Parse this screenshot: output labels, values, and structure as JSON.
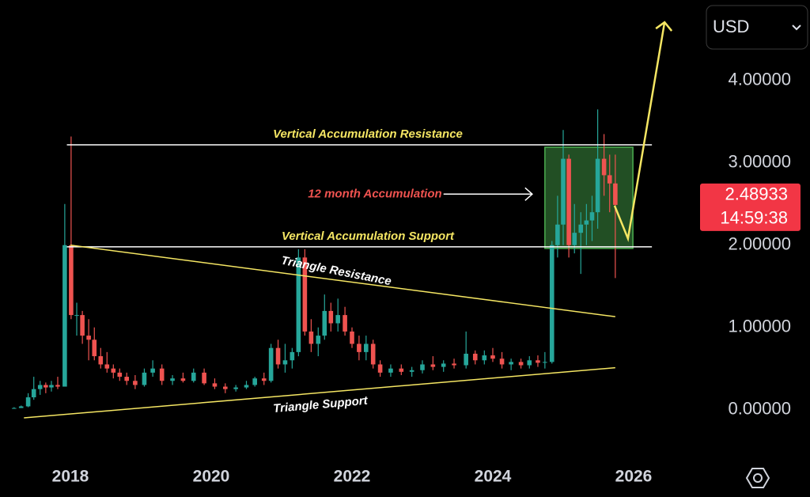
{
  "chart_data": {
    "type": "candlestick",
    "xlim": [
      2017,
      2027
    ],
    "ylim": [
      -0.6,
      4.98
    ],
    "xticks": [
      2018,
      2020,
      2022,
      2024,
      2026
    ],
    "yticks": [
      {
        "value": 0,
        "label": "0.00000"
      },
      {
        "value": 1,
        "label": "1.00000"
      },
      {
        "value": 2,
        "label": "2.00000"
      },
      {
        "value": 3,
        "label": "3.00000"
      },
      {
        "value": 4,
        "label": "4.00000"
      }
    ],
    "up_color": "#26a69a",
    "down_color": "#ef5350",
    "x": [
      2017.2,
      2017.3,
      2017.4,
      2017.48,
      2017.57,
      2017.65,
      2017.73,
      2017.82,
      2017.92,
      2018.01,
      2018.09,
      2018.17,
      2018.26,
      2018.34,
      2018.43,
      2018.52,
      2018.61,
      2018.7,
      2018.8,
      2018.92,
      2019.05,
      2019.17,
      2019.3,
      2019.45,
      2019.6,
      2019.75,
      2019.9,
      2020.05,
      2020.2,
      2020.35,
      2020.5,
      2020.62,
      2020.75,
      2020.85,
      2020.95,
      2021.05,
      2021.15,
      2021.24,
      2021.33,
      2021.42,
      2021.52,
      2021.61,
      2021.7,
      2021.8,
      2021.9,
      2022.0,
      2022.1,
      2022.2,
      2022.3,
      2022.4,
      2022.55,
      2022.7,
      2022.85,
      2023.0,
      2023.15,
      2023.3,
      2023.45,
      2023.62,
      2023.75,
      2023.88,
      2024.0,
      2024.13,
      2024.26,
      2024.4,
      2024.52,
      2024.64,
      2024.74,
      2024.84,
      2024.92,
      2025.0,
      2025.08,
      2025.16,
      2025.25,
      2025.33,
      2025.41,
      2025.49,
      2025.58,
      2025.66,
      2025.74
    ],
    "open": [
      0.02,
      0.02,
      0.04,
      0.15,
      0.25,
      0.3,
      0.27,
      0.3,
      0.28,
      2.0,
      1.15,
      1.15,
      0.9,
      0.85,
      0.65,
      0.55,
      0.5,
      0.45,
      0.4,
      0.35,
      0.3,
      0.45,
      0.5,
      0.35,
      0.38,
      0.35,
      0.45,
      0.32,
      0.28,
      0.25,
      0.27,
      0.3,
      0.38,
      0.35,
      0.75,
      0.55,
      0.6,
      0.7,
      1.85,
      0.95,
      0.8,
      0.9,
      1.2,
      1.05,
      1.15,
      0.95,
      0.8,
      0.7,
      0.8,
      0.55,
      0.45,
      0.5,
      0.46,
      0.48,
      0.55,
      0.52,
      0.56,
      0.54,
      0.68,
      0.6,
      0.66,
      0.62,
      0.55,
      0.58,
      0.54,
      0.6,
      0.57,
      0.58,
      2.0,
      2.25,
      3.05,
      2.0,
      2.15,
      2.25,
      2.3,
      2.4,
      3.05,
      2.85,
      2.75
    ],
    "high": [
      0.03,
      0.05,
      0.2,
      0.4,
      0.35,
      0.33,
      0.35,
      0.4,
      2.5,
      3.32,
      1.3,
      1.2,
      1.1,
      1.0,
      0.75,
      0.7,
      0.55,
      0.5,
      0.45,
      0.42,
      0.5,
      0.6,
      0.55,
      0.42,
      0.45,
      0.5,
      0.5,
      0.38,
      0.32,
      0.3,
      0.35,
      0.4,
      0.45,
      0.8,
      0.85,
      0.8,
      0.75,
      1.95,
      1.95,
      1.1,
      1.0,
      1.4,
      1.3,
      1.35,
      1.25,
      1.0,
      0.9,
      0.9,
      0.85,
      0.6,
      0.55,
      0.55,
      0.52,
      0.6,
      0.65,
      0.6,
      0.62,
      0.95,
      0.72,
      0.72,
      0.75,
      0.7,
      0.62,
      0.62,
      0.65,
      0.66,
      0.7,
      2.05,
      2.6,
      3.4,
      3.1,
      2.5,
      2.4,
      2.5,
      2.6,
      3.65,
      3.35,
      3.1,
      3.1
    ],
    "low": [
      0.01,
      0.02,
      0.03,
      0.12,
      0.18,
      0.2,
      0.22,
      0.25,
      0.28,
      1.1,
      0.9,
      0.8,
      0.6,
      0.6,
      0.5,
      0.45,
      0.38,
      0.35,
      0.3,
      0.25,
      0.28,
      0.4,
      0.3,
      0.3,
      0.33,
      0.33,
      0.3,
      0.25,
      0.2,
      0.22,
      0.25,
      0.28,
      0.3,
      0.33,
      0.5,
      0.45,
      0.5,
      0.65,
      0.9,
      0.7,
      0.65,
      0.85,
      0.95,
      0.95,
      0.9,
      0.75,
      0.6,
      0.6,
      0.5,
      0.4,
      0.4,
      0.42,
      0.4,
      0.44,
      0.48,
      0.46,
      0.5,
      0.5,
      0.55,
      0.55,
      0.58,
      0.5,
      0.48,
      0.5,
      0.5,
      0.52,
      0.5,
      0.56,
      1.85,
      2.0,
      1.85,
      1.9,
      1.65,
      2.0,
      2.05,
      2.2,
      2.6,
      2.4,
      1.6
    ],
    "close": [
      0.02,
      0.04,
      0.15,
      0.25,
      0.3,
      0.27,
      0.3,
      0.28,
      2.0,
      1.15,
      1.15,
      0.9,
      0.85,
      0.65,
      0.55,
      0.5,
      0.45,
      0.4,
      0.35,
      0.3,
      0.45,
      0.5,
      0.35,
      0.38,
      0.35,
      0.45,
      0.32,
      0.28,
      0.25,
      0.27,
      0.3,
      0.38,
      0.35,
      0.75,
      0.55,
      0.6,
      0.7,
      1.85,
      0.95,
      0.8,
      0.9,
      1.2,
      1.05,
      1.15,
      0.95,
      0.8,
      0.7,
      0.8,
      0.55,
      0.45,
      0.5,
      0.46,
      0.48,
      0.55,
      0.52,
      0.56,
      0.54,
      0.68,
      0.6,
      0.66,
      0.62,
      0.55,
      0.58,
      0.54,
      0.6,
      0.57,
      0.58,
      2.0,
      2.25,
      3.05,
      2.0,
      2.15,
      2.25,
      2.3,
      2.4,
      3.05,
      2.85,
      2.75,
      2.48933
    ],
    "last_price": 2.48933,
    "countdown": "14:59:38",
    "annotations": [
      {
        "label": "Vertical Accumulation Resistance",
        "color": "#ffffff",
        "label_color": "#f5e663",
        "points": [
          [
            2017.95,
            3.22
          ],
          [
            2026.26,
            3.22
          ]
        ]
      },
      {
        "label": "Vertical Accumulation Support",
        "color": "#ffffff",
        "label_color": "#f5e663",
        "points": [
          [
            2017.95,
            1.98
          ],
          [
            2026.26,
            1.98
          ]
        ]
      },
      {
        "label": "Triangle Resistance",
        "color": "#f5e663",
        "label_color": "#ffffff",
        "points": [
          [
            2018.0,
            2.0
          ],
          [
            2025.74,
            1.13
          ]
        ]
      },
      {
        "label": "Triangle Support",
        "color": "#f5e663",
        "label_color": "#ffffff",
        "points": [
          [
            2017.34,
            -0.1
          ],
          [
            2025.74,
            0.51
          ]
        ]
      }
    ],
    "box": {
      "x": [
        2024.74,
        2025.99
      ],
      "y": [
        1.96,
        3.19
      ],
      "color": "#4caf50"
    },
    "arrow": {
      "label": "12 month Accumulation",
      "label_color": "#ef5350",
      "x": [
        2023.3,
        2024.56
      ],
      "y": [
        2.62,
        2.62
      ]
    },
    "projection": {
      "color": "#f5e663",
      "x": [
        2025.73,
        2025.92,
        2026.44
      ],
      "y": [
        2.48,
        2.08,
        4.71
      ]
    }
  },
  "ui": {
    "currency": "USD"
  }
}
